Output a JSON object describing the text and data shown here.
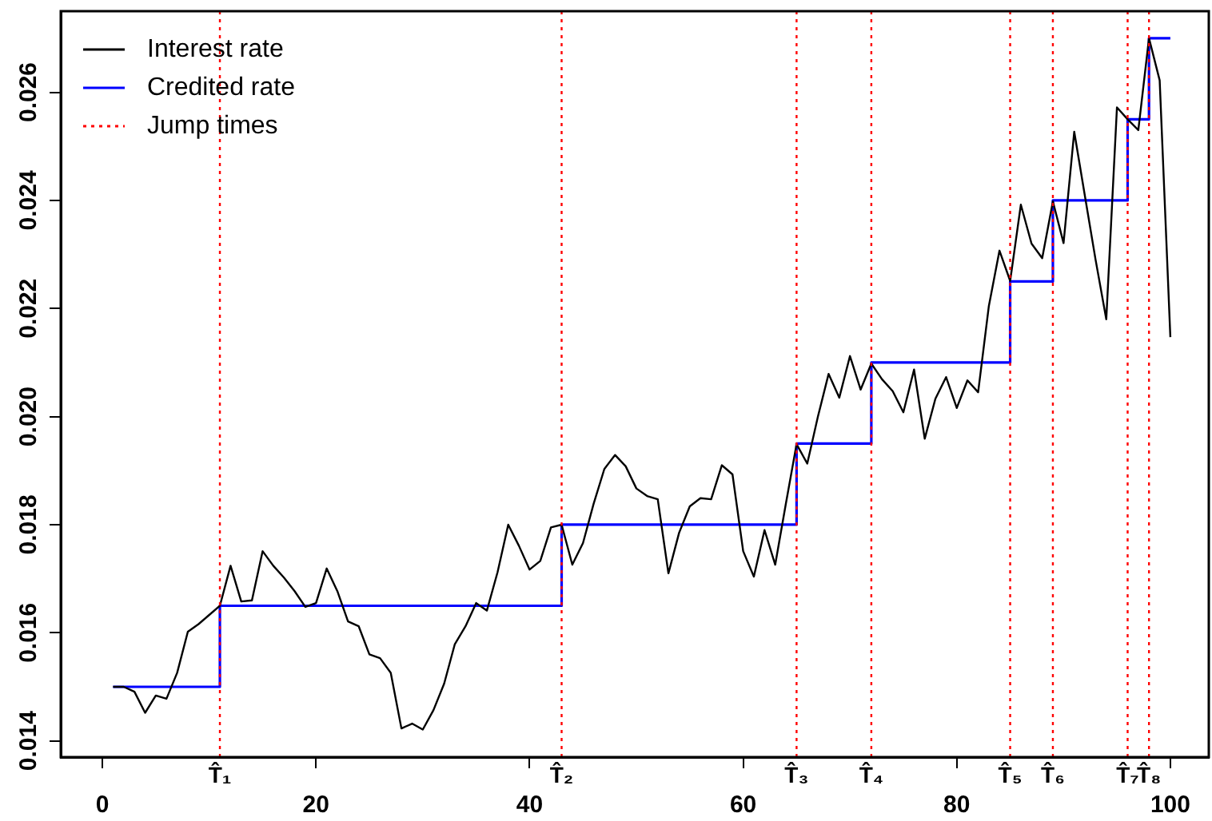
{
  "chart_data": {
    "type": "line",
    "series": [
      {
        "name": "Interest rate",
        "type": "line",
        "color": "#000000",
        "x": [
          1,
          2,
          3,
          4,
          5,
          6,
          7,
          8,
          9,
          10,
          11,
          12,
          13,
          14,
          15,
          16,
          17,
          18,
          19,
          20,
          21,
          22,
          23,
          24,
          25,
          26,
          27,
          28,
          29,
          30,
          31,
          32,
          33,
          34,
          35,
          36,
          37,
          38,
          39,
          40,
          41,
          42,
          43,
          44,
          45,
          46,
          47,
          48,
          49,
          50,
          51,
          52,
          53,
          54,
          55,
          56,
          57,
          58,
          59,
          60,
          61,
          62,
          63,
          64,
          65,
          66,
          67,
          68,
          69,
          70,
          71,
          72,
          73,
          74,
          75,
          76,
          77,
          78,
          79,
          80,
          81,
          82,
          83,
          84,
          85,
          86,
          87,
          88,
          89,
          90,
          91,
          92,
          93,
          94,
          95,
          96,
          97,
          98,
          99,
          100
        ],
        "values": [
          0.015,
          0.015,
          0.01491,
          0.01452,
          0.01484,
          0.01478,
          0.01526,
          0.01602,
          0.01616,
          0.01633,
          0.0165,
          0.01724,
          0.01658,
          0.0166,
          0.01751,
          0.01724,
          0.01702,
          0.01677,
          0.01648,
          0.01655,
          0.01719,
          0.01677,
          0.01621,
          0.01612,
          0.0156,
          0.01553,
          0.01526,
          0.01423,
          0.01432,
          0.01421,
          0.01457,
          0.01506,
          0.01579,
          0.01612,
          0.01655,
          0.01641,
          0.01712,
          0.018,
          0.01761,
          0.01717,
          0.01733,
          0.01795,
          0.018,
          0.01726,
          0.01766,
          0.01839,
          0.01903,
          0.01929,
          0.01908,
          0.01867,
          0.01853,
          0.01847,
          0.0171,
          0.01785,
          0.01834,
          0.01849,
          0.01847,
          0.0191,
          0.01893,
          0.01751,
          0.01704,
          0.0179,
          0.01726,
          0.01839,
          0.01949,
          0.01913,
          0.02,
          0.02079,
          0.02035,
          0.02112,
          0.0205,
          0.02098,
          0.02069,
          0.02047,
          0.02008,
          0.02087,
          0.01959,
          0.02033,
          0.02073,
          0.02016,
          0.02067,
          0.02045,
          0.02204,
          0.02307,
          0.02251,
          0.02392,
          0.0232,
          0.02293,
          0.02398,
          0.02321,
          0.02527,
          0.02408,
          0.0229,
          0.0218,
          0.02572,
          0.0255,
          0.0253,
          0.027,
          0.02622,
          0.02147
        ]
      },
      {
        "name": "Credited rate",
        "type": "step",
        "color": "#0000ff",
        "x": [
          1,
          11,
          43,
          65,
          72,
          85,
          89,
          96,
          98,
          100
        ],
        "values": [
          0.015,
          0.0165,
          0.018,
          0.0195,
          0.021,
          0.0225,
          0.024,
          0.0255,
          0.027,
          0.027
        ]
      }
    ],
    "ref_lines": [
      {
        "axis": "x",
        "value": 11,
        "label": "T̂₁",
        "color": "#ff0000",
        "line_style": "dotted"
      },
      {
        "axis": "x",
        "value": 43,
        "label": "T̂₂",
        "color": "#ff0000",
        "line_style": "dotted"
      },
      {
        "axis": "x",
        "value": 65,
        "label": "T̂₃",
        "color": "#ff0000",
        "line_style": "dotted"
      },
      {
        "axis": "x",
        "value": 72,
        "label": "T̂₄",
        "color": "#ff0000",
        "line_style": "dotted"
      },
      {
        "axis": "x",
        "value": 85,
        "label": "T̂₅",
        "color": "#ff0000",
        "line_style": "dotted"
      },
      {
        "axis": "x",
        "value": 89,
        "label": "T̂₆",
        "color": "#ff0000",
        "line_style": "dotted"
      },
      {
        "axis": "x",
        "value": 96,
        "label": "T̂₇",
        "color": "#ff0000",
        "line_style": "dotted"
      },
      {
        "axis": "x",
        "value": 98,
        "label": "T̂₈",
        "color": "#ff0000",
        "line_style": "dotted"
      }
    ],
    "annotations": [
      "Jump times"
    ],
    "xlim": [
      -3.9,
      103.6
    ],
    "xticks": [
      0,
      20,
      40,
      60,
      80,
      100
    ],
    "ylim": [
      0.0137,
      0.0275
    ],
    "yticks": [
      0.014,
      0.016,
      0.018,
      {
        "value": 0.02,
        "label": "0.020"
      },
      0.022,
      0.024,
      0.026
    ],
    "grid": false,
    "legend": "top left",
    "marker": "none",
    "line_style": "solid"
  }
}
